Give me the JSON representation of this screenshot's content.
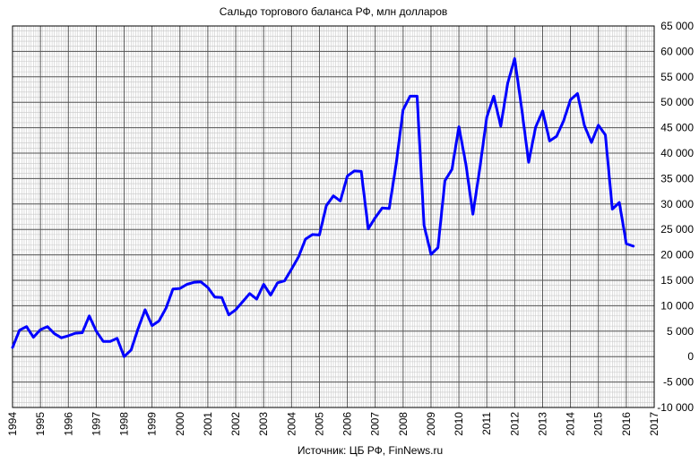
{
  "chart_data": {
    "type": "line",
    "title": "Сальдо торгового баланса РФ, млн долларов",
    "source": "Источник: ЦБ РФ, FinNews.ru",
    "xlim": [
      1994,
      2017
    ],
    "ylim": [
      -10000,
      65000
    ],
    "x_ticks": [
      "1994",
      "1995",
      "1996",
      "1997",
      "1998",
      "1999",
      "2000",
      "2001",
      "2002",
      "2003",
      "2004",
      "2005",
      "2006",
      "2007",
      "2008",
      "2009",
      "2010",
      "2011",
      "2012",
      "2013",
      "2014",
      "2015",
      "2016",
      "2017"
    ],
    "y_ticks": [
      "-10 000",
      "-5 000",
      "0",
      "5 000",
      "10 000",
      "15 000",
      "20 000",
      "25 000",
      "30 000",
      "35 000",
      "40 000",
      "45 000",
      "50 000",
      "55 000",
      "60 000",
      "65 000"
    ],
    "grid": true,
    "line_color": "#0000ff",
    "series": [
      {
        "x": [
          1994.0,
          1994.25,
          1994.5,
          1994.75,
          1995.0,
          1995.25,
          1995.5,
          1995.75,
          1996.0,
          1996.25,
          1996.5,
          1996.75,
          1997.0,
          1997.25,
          1997.5,
          1997.75,
          1998.0,
          1998.25,
          1998.5,
          1998.75,
          1999.0,
          1999.25,
          1999.5,
          1999.75,
          2000.0,
          2000.25,
          2000.5,
          2000.75,
          2001.0,
          2001.25,
          2001.5,
          2001.75,
          2002.0,
          2002.25,
          2002.5,
          2002.75,
          2003.0,
          2003.25,
          2003.5,
          2003.75,
          2004.0,
          2004.25,
          2004.5,
          2004.75,
          2005.0,
          2005.25,
          2005.5,
          2005.75,
          2006.0,
          2006.25,
          2006.5,
          2006.75,
          2007.0,
          2007.25,
          2007.5,
          2007.75,
          2008.0,
          2008.25,
          2008.5,
          2008.75,
          2009.0,
          2009.25,
          2009.5,
          2009.75,
          2010.0,
          2010.25,
          2010.5,
          2010.75,
          2011.0,
          2011.25,
          2011.5,
          2011.75,
          2012.0,
          2012.25,
          2012.5,
          2012.75,
          2013.0,
          2013.25,
          2013.5,
          2013.75,
          2014.0,
          2014.25,
          2014.5,
          2014.75,
          2015.0,
          2015.25,
          2015.5,
          2015.75,
          2016.0,
          2016.25
        ],
        "values": [
          1800,
          5200,
          5900,
          3800,
          5300,
          5900,
          4500,
          3700,
          4100,
          4600,
          4700,
          8000,
          5000,
          3000,
          3000,
          3600,
          0,
          1300,
          5500,
          9200,
          6100,
          7000,
          9500,
          13300,
          13400,
          14200,
          14600,
          14700,
          13600,
          11700,
          11600,
          8200,
          9200,
          10800,
          12400,
          11300,
          14200,
          12100,
          14500,
          14900,
          17200,
          19600,
          23100,
          24000,
          23900,
          29700,
          31600,
          30600,
          35500,
          36500,
          36400,
          25100,
          27300,
          29200,
          29100,
          37800,
          48500,
          51200,
          51200,
          25800,
          20100,
          21400,
          34600,
          36800,
          45200,
          37800,
          28000,
          37000,
          47100,
          51200,
          45300,
          53800,
          58600,
          48800,
          38200,
          45100,
          48300,
          42400,
          43300,
          46300,
          50500,
          51700,
          45400,
          42100,
          45500,
          43600,
          29000,
          30300,
          22200,
          21700
        ]
      }
    ]
  }
}
